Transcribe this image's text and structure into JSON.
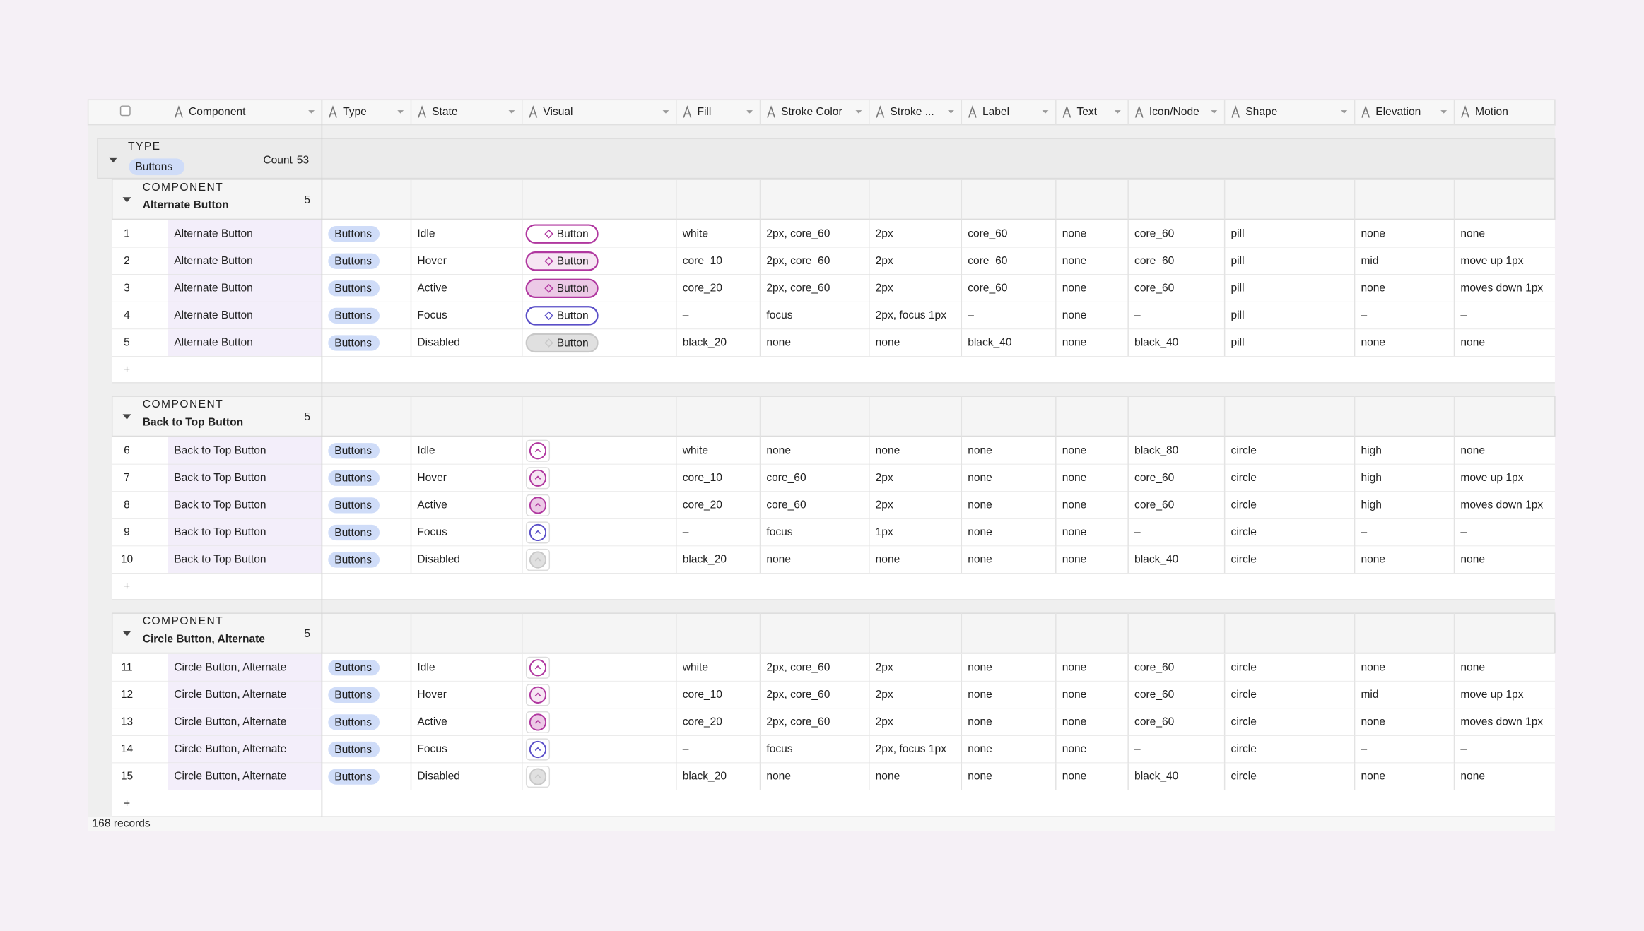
{
  "columns": [
    "Component",
    "Type",
    "State",
    "Visual",
    "Fill",
    "Stroke Color",
    "Stroke ...",
    "Label",
    "Text",
    "Icon/Node",
    "Shape",
    "Elevation",
    "Motion"
  ],
  "group": {
    "field": "TYPE",
    "name": "Buttons",
    "count_label": "Count",
    "count": 53
  },
  "visual_text": "Button",
  "add_row": "+",
  "subgroups": [
    {
      "field": "COMPONENT",
      "name": "Alternate Button",
      "count": 5,
      "rows": [
        {
          "number": 1,
          "cells": [
            "Alternate Button",
            "Buttons",
            "Idle",
            "white",
            "2px, core_60",
            "2px",
            "core_60",
            "none",
            "core_60",
            "pill",
            "none",
            "none"
          ]
        },
        {
          "number": 2,
          "cells": [
            "Alternate Button",
            "Buttons",
            "Hover",
            "core_10",
            "2px, core_60",
            "2px",
            "core_60",
            "none",
            "core_60",
            "pill",
            "mid",
            "move up 1px"
          ]
        },
        {
          "number": 3,
          "cells": [
            "Alternate Button",
            "Buttons",
            "Active",
            "core_20",
            "2px, core_60",
            "2px",
            "core_60",
            "none",
            "core_60",
            "pill",
            "none",
            "moves down 1px"
          ]
        },
        {
          "number": 4,
          "cells": [
            "Alternate Button",
            "Buttons",
            "Focus",
            "–",
            "focus",
            "2px, focus 1px",
            "–",
            "none",
            "–",
            "pill",
            "–",
            "–"
          ]
        },
        {
          "number": 5,
          "cells": [
            "Alternate Button",
            "Buttons",
            "Disabled",
            "black_20",
            "none",
            "none",
            "black_40",
            "none",
            "black_40",
            "pill",
            "none",
            "none"
          ]
        }
      ]
    },
    {
      "field": "COMPONENT",
      "name": "Back to Top Button",
      "count": 5,
      "rows": [
        {
          "number": 6,
          "cells": [
            "Back to Top Button",
            "Buttons",
            "Idle",
            "white",
            "none",
            "none",
            "none",
            "none",
            "black_80",
            "circle",
            "high",
            "none"
          ]
        },
        {
          "number": 7,
          "cells": [
            "Back to Top Button",
            "Buttons",
            "Hover",
            "core_10",
            "core_60",
            "2px",
            "none",
            "none",
            "core_60",
            "circle",
            "high",
            "move up 1px"
          ]
        },
        {
          "number": 8,
          "cells": [
            "Back to Top Button",
            "Buttons",
            "Active",
            "core_20",
            "core_60",
            "2px",
            "none",
            "none",
            "core_60",
            "circle",
            "high",
            "moves down 1px"
          ]
        },
        {
          "number": 9,
          "cells": [
            "Back to Top Button",
            "Buttons",
            "Focus",
            "–",
            "focus",
            "1px",
            "none",
            "none",
            "–",
            "circle",
            "–",
            "–"
          ]
        },
        {
          "number": 10,
          "cells": [
            "Back to Top Button",
            "Buttons",
            "Disabled",
            "black_20",
            "none",
            "none",
            "none",
            "none",
            "black_40",
            "circle",
            "none",
            "none"
          ]
        }
      ]
    },
    {
      "field": "COMPONENT",
      "name": "Circle Button, Alternate",
      "count": 5,
      "rows": [
        {
          "number": 11,
          "cells": [
            "Circle Button, Alternate",
            "Buttons",
            "Idle",
            "white",
            "2px, core_60",
            "2px",
            "none",
            "none",
            "core_60",
            "circle",
            "none",
            "none"
          ]
        },
        {
          "number": 12,
          "cells": [
            "Circle Button, Alternate",
            "Buttons",
            "Hover",
            "core_10",
            "2px, core_60",
            "2px",
            "none",
            "none",
            "core_60",
            "circle",
            "mid",
            "move up 1px"
          ]
        },
        {
          "number": 13,
          "cells": [
            "Circle Button, Alternate",
            "Buttons",
            "Active",
            "core_20",
            "2px, core_60",
            "2px",
            "none",
            "none",
            "core_60",
            "circle",
            "none",
            "moves down 1px"
          ]
        },
        {
          "number": 14,
          "cells": [
            "Circle Button, Alternate",
            "Buttons",
            "Focus",
            "–",
            "focus",
            "2px, focus 1px",
            "none",
            "none",
            "–",
            "circle",
            "–",
            "–"
          ]
        },
        {
          "number": 15,
          "cells": [
            "Circle Button, Alternate",
            "Buttons",
            "Disabled",
            "black_20",
            "none",
            "none",
            "none",
            "none",
            "black_40",
            "circle",
            "none",
            "none"
          ]
        }
      ]
    }
  ],
  "footer": "168 records"
}
